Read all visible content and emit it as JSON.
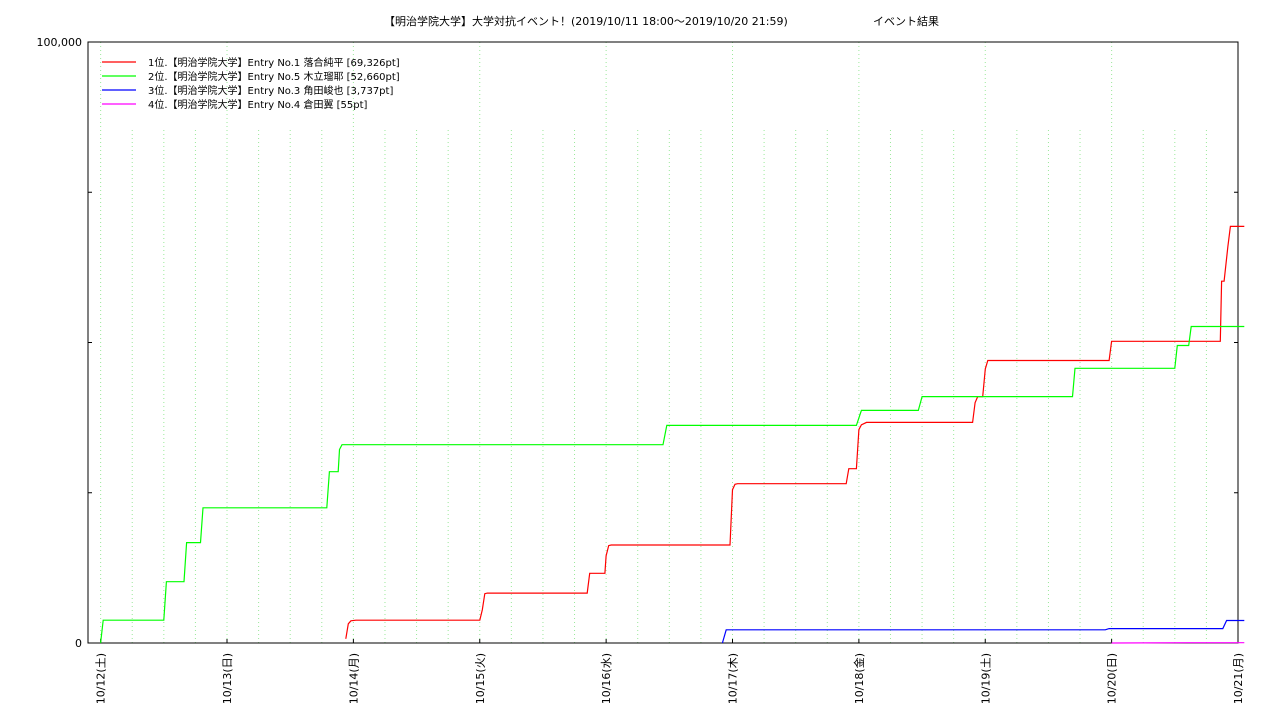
{
  "chart_data": {
    "type": "line",
    "title": "【明治学院大学】大学対抗イベント！(2019/10/11 18:00〜2019/10/20 21:59)",
    "title_suffix": "イベント結果",
    "y_tick_labels": [
      "0",
      "100,000"
    ],
    "ylim": [
      0,
      100000
    ],
    "y_minor_ticks": [
      25000,
      50000,
      75000
    ],
    "xlim": [
      -0.1,
      9.0
    ],
    "x_axis_type": "date",
    "x_ticks": [
      {
        "x": 0,
        "label": "10/12(土)"
      },
      {
        "x": 1,
        "label": "10/13(日)"
      },
      {
        "x": 2,
        "label": "10/14(月)"
      },
      {
        "x": 3,
        "label": "10/15(火)"
      },
      {
        "x": 4,
        "label": "10/16(水)"
      },
      {
        "x": 5,
        "label": "10/17(木)"
      },
      {
        "x": 6,
        "label": "10/18(金)"
      },
      {
        "x": 7,
        "label": "10/19(土)"
      },
      {
        "x": 8,
        "label": "10/20(日)"
      },
      {
        "x": 9,
        "label": "10/21(月)"
      }
    ],
    "x_minor_step": 0.25,
    "grid": "dotted-vertical",
    "legend_position": "top-left",
    "series": [
      {
        "name": "1位.【明治学院大学】Entry No.1 落合純平 [69,326pt]",
        "color": "#ff0000",
        "points": [
          [
            1.94,
            700
          ],
          [
            1.96,
            3200
          ],
          [
            1.98,
            3700
          ],
          [
            2.02,
            3800
          ],
          [
            3.0,
            3800
          ],
          [
            3.02,
            5500
          ],
          [
            3.04,
            8200
          ],
          [
            3.06,
            8300
          ],
          [
            3.85,
            8300
          ],
          [
            3.87,
            11600
          ],
          [
            3.99,
            11600
          ],
          [
            4.0,
            14500
          ],
          [
            4.02,
            16200
          ],
          [
            4.04,
            16300
          ],
          [
            4.98,
            16300
          ],
          [
            5.0,
            25500
          ],
          [
            5.02,
            26400
          ],
          [
            5.04,
            26500
          ],
          [
            5.9,
            26500
          ],
          [
            5.92,
            29000
          ],
          [
            5.98,
            29000
          ],
          [
            6.0,
            35500
          ],
          [
            6.02,
            36300
          ],
          [
            6.06,
            36700
          ],
          [
            6.9,
            36700
          ],
          [
            6.92,
            40000
          ],
          [
            6.94,
            41000
          ],
          [
            6.98,
            41000
          ],
          [
            7.0,
            45600
          ],
          [
            7.02,
            47000
          ],
          [
            7.06,
            47000
          ],
          [
            7.98,
            47000
          ],
          [
            8.0,
            50200
          ],
          [
            8.86,
            50200
          ],
          [
            8.87,
            60200
          ],
          [
            8.89,
            60200
          ],
          [
            8.92,
            66000
          ],
          [
            8.94,
            69326
          ],
          [
            9.05,
            69326
          ]
        ]
      },
      {
        "name": "2位.【明治学院大学】Entry No.5 木立瑠耶 [52,660pt]",
        "color": "#00ff00",
        "points": [
          [
            0.0,
            0
          ],
          [
            0.02,
            3800
          ],
          [
            0.5,
            3800
          ],
          [
            0.52,
            10200
          ],
          [
            0.66,
            10200
          ],
          [
            0.68,
            16700
          ],
          [
            0.79,
            16700
          ],
          [
            0.81,
            22500
          ],
          [
            1.79,
            22500
          ],
          [
            1.81,
            28500
          ],
          [
            1.88,
            28500
          ],
          [
            1.89,
            32200
          ],
          [
            1.91,
            33000
          ],
          [
            4.45,
            33000
          ],
          [
            4.48,
            36200
          ],
          [
            5.98,
            36200
          ],
          [
            6.02,
            38700
          ],
          [
            6.47,
            38700
          ],
          [
            6.5,
            41000
          ],
          [
            7.69,
            41000
          ],
          [
            7.71,
            45700
          ],
          [
            8.5,
            45700
          ],
          [
            8.52,
            49500
          ],
          [
            8.61,
            49500
          ],
          [
            8.63,
            52660
          ],
          [
            9.05,
            52660
          ]
        ]
      },
      {
        "name": "3位.【明治学院大学】Entry No.3 角田峻也 [3,737pt]",
        "color": "#0000ff",
        "points": [
          [
            4.92,
            0
          ],
          [
            4.95,
            2200
          ],
          [
            7.95,
            2200
          ],
          [
            7.98,
            2400
          ],
          [
            8.88,
            2400
          ],
          [
            8.91,
            3737
          ],
          [
            9.05,
            3737
          ]
        ]
      },
      {
        "name": "4位.【明治学院大学】Entry No.4 倉田翼 [55pt]",
        "color": "#ff00ff",
        "points": [
          [
            8.0,
            0
          ],
          [
            8.6,
            55
          ],
          [
            9.05,
            55
          ]
        ]
      }
    ]
  }
}
